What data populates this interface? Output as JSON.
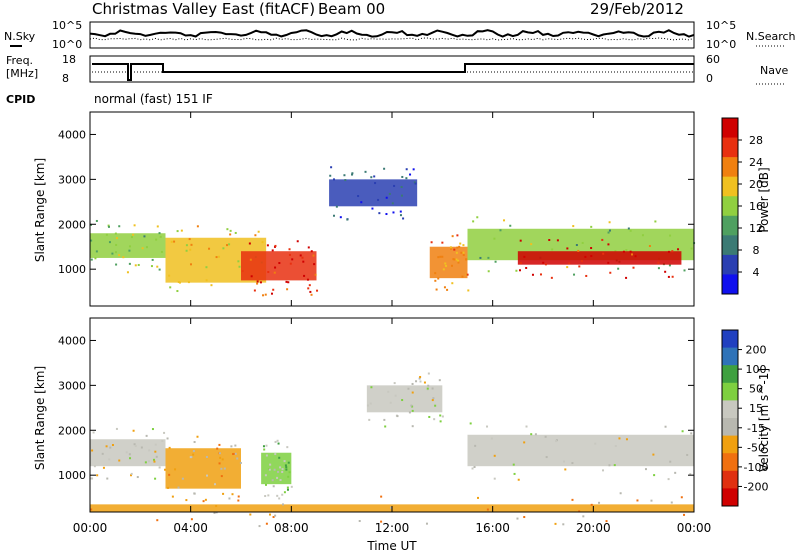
{
  "header": {
    "station": "Christmas Valley East (fitACF)",
    "beam": "Beam 00",
    "date": "29/Feb/2012"
  },
  "status_panels": {
    "nsky_label": "N.Sky",
    "nsearch_label": "N.Search",
    "freq_label_1": "Freq.",
    "freq_label_2": "[MHz]",
    "nave_label": "Nave",
    "cpid_label": "CPID",
    "cpid_text": "normal (fast) 151 IF",
    "noise_ticks_left": [
      "10^5",
      "10^0"
    ],
    "noise_ticks_right": [
      "10^5",
      "10^0"
    ],
    "freq_ticks": [
      "18",
      "8"
    ],
    "nave_ticks": [
      "60",
      "0"
    ]
  },
  "axes": {
    "xlabel": "Time UT",
    "ylabel": "Slant Range [km]",
    "xticks": [
      "00:00",
      "04:00",
      "08:00",
      "12:00",
      "16:00",
      "20:00",
      "00:00"
    ],
    "yticks": [
      "1000",
      "2000",
      "3000",
      "4000"
    ]
  },
  "colorbars": {
    "power_title": "Power [dB]",
    "power_ticks": [
      "4",
      "8",
      "12",
      "16",
      "20",
      "24",
      "28"
    ],
    "velocity_title": "Velocity [m s^-1]",
    "velocity_ticks": [
      "200",
      "100",
      "50",
      "15",
      "-15",
      "-50",
      "-100",
      "-200"
    ],
    "power_colors": [
      "#1010ee",
      "#2a3fb2",
      "#3b7a74",
      "#4fa060",
      "#90cf40",
      "#f0c020",
      "#f08010",
      "#e83010",
      "#d00000"
    ],
    "velocity_colors": [
      "#2040c0",
      "#2f73b8",
      "#3fa040",
      "#7ed040",
      "#c8c8c0",
      "#b8b8b0",
      "#f0a010",
      "#f07010",
      "#e03010",
      "#d00000"
    ]
  },
  "chart_data": [
    {
      "type": "heatmap",
      "title": "Power [dB]",
      "xlabel": "Time UT",
      "ylabel": "Slant Range [km]",
      "xlim": [
        0,
        24
      ],
      "ylim": [
        180,
        4500
      ],
      "colorbar_range": [
        0,
        30
      ],
      "bands": [
        {
          "t0": 0.0,
          "t1": 3.0,
          "r0": 1250,
          "r1": 1800,
          "value": 14
        },
        {
          "t0": 3.0,
          "t1": 7.0,
          "r0": 700,
          "r1": 1700,
          "value": 18
        },
        {
          "t0": 6.0,
          "t1": 9.0,
          "r0": 750,
          "r1": 1400,
          "value": 26
        },
        {
          "t0": 9.5,
          "t1": 13.0,
          "r0": 2400,
          "r1": 3000,
          "value": 6
        },
        {
          "t0": 13.5,
          "t1": 15.0,
          "r0": 800,
          "r1": 1500,
          "value": 22
        },
        {
          "t0": 15.0,
          "t1": 24.0,
          "r0": 1200,
          "r1": 1900,
          "value": 14
        },
        {
          "t0": 17.0,
          "t1": 23.5,
          "r0": 1100,
          "r1": 1400,
          "value": 27
        }
      ]
    },
    {
      "type": "heatmap",
      "title": "Velocity [m s^-1]",
      "xlabel": "Time UT",
      "ylabel": "Slant Range [km]",
      "xlim": [
        0,
        24
      ],
      "ylim": [
        180,
        4500
      ],
      "colorbar_range": [
        -200,
        200
      ],
      "bands": [
        {
          "t0": 0.0,
          "t1": 3.0,
          "r0": 1200,
          "r1": 1800,
          "value": 0
        },
        {
          "t0": 3.0,
          "t1": 6.0,
          "r0": 700,
          "r1": 1600,
          "value": -50
        },
        {
          "t0": 6.8,
          "t1": 8.0,
          "r0": 800,
          "r1": 1500,
          "value": 40
        },
        {
          "t0": 11.0,
          "t1": 14.0,
          "r0": 2400,
          "r1": 3000,
          "value": 10
        },
        {
          "t0": 15.0,
          "t1": 24.0,
          "r0": 1200,
          "r1": 1900,
          "value": 0
        },
        {
          "t0": 0.0,
          "t1": 24.0,
          "r0": 180,
          "r1": 350,
          "value": -60
        }
      ]
    }
  ]
}
